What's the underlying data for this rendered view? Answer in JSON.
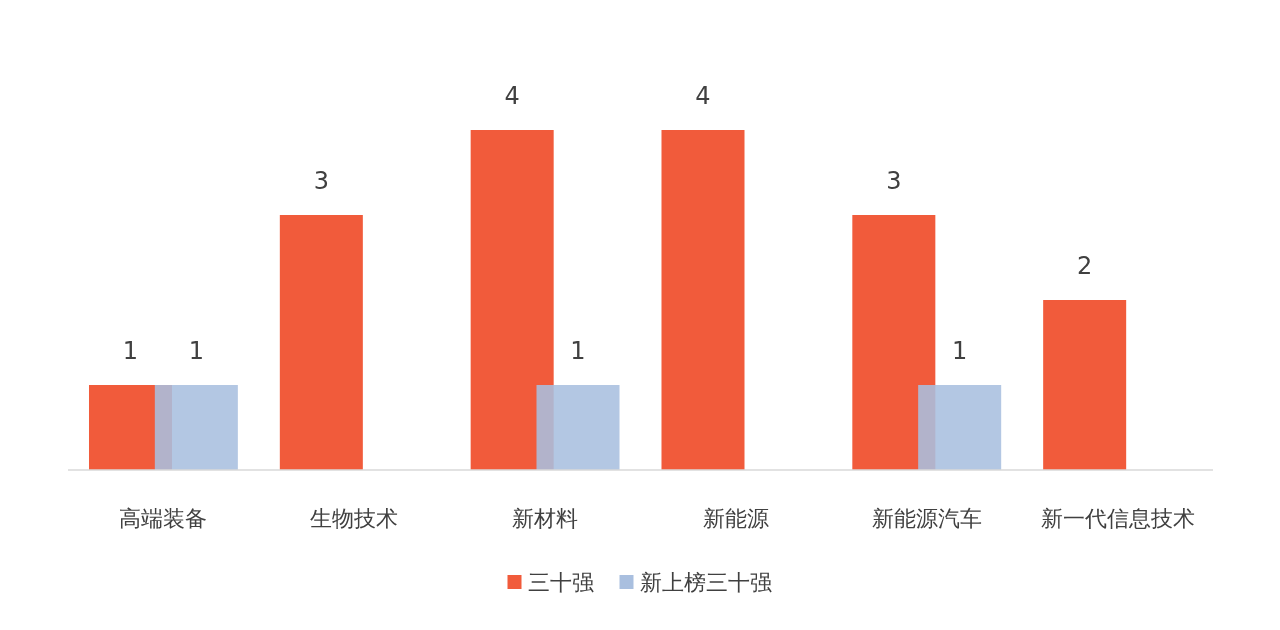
{
  "chart_data": {
    "type": "bar",
    "categories": [
      "高端装备",
      "生物技术",
      "新材料",
      "新能源",
      "新能源汽车",
      "新一代信息技术"
    ],
    "series": [
      {
        "name": "三十强",
        "color": "#f15b3b",
        "values": [
          1,
          3,
          4,
          4,
          3,
          2
        ]
      },
      {
        "name": "新上榜三十强",
        "color": "#a9bfdf",
        "values": [
          1,
          null,
          1,
          null,
          1,
          null
        ]
      }
    ],
    "data_labels": true,
    "legend": "bottom",
    "grid": false
  }
}
